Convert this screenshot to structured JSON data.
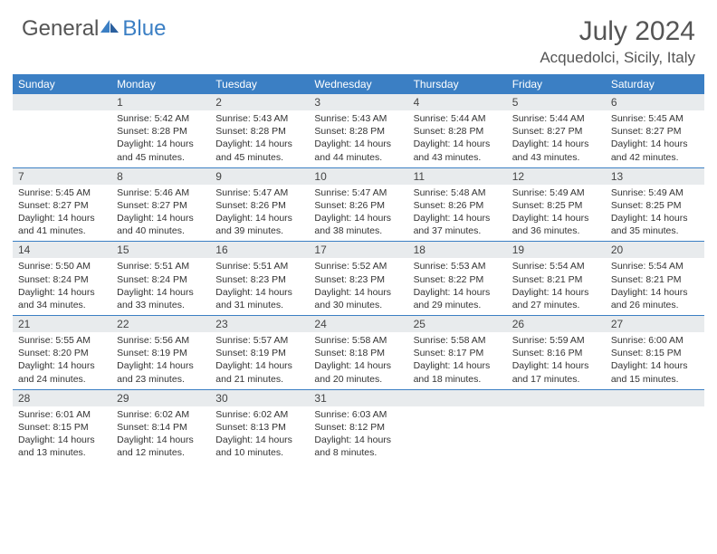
{
  "logo": {
    "general": "General",
    "blue": "Blue"
  },
  "title": "July 2024",
  "location": "Acquedolci, Sicily, Italy",
  "colors": {
    "header_bg": "#3b7fc4",
    "daynum_bg": "#e8ebed",
    "text": "#333333",
    "title_text": "#555555"
  },
  "dayNames": [
    "Sunday",
    "Monday",
    "Tuesday",
    "Wednesday",
    "Thursday",
    "Friday",
    "Saturday"
  ],
  "weeks": [
    [
      null,
      {
        "n": "1",
        "sr": "Sunrise: 5:42 AM",
        "ss": "Sunset: 8:28 PM",
        "d1": "Daylight: 14 hours",
        "d2": "and 45 minutes."
      },
      {
        "n": "2",
        "sr": "Sunrise: 5:43 AM",
        "ss": "Sunset: 8:28 PM",
        "d1": "Daylight: 14 hours",
        "d2": "and 45 minutes."
      },
      {
        "n": "3",
        "sr": "Sunrise: 5:43 AM",
        "ss": "Sunset: 8:28 PM",
        "d1": "Daylight: 14 hours",
        "d2": "and 44 minutes."
      },
      {
        "n": "4",
        "sr": "Sunrise: 5:44 AM",
        "ss": "Sunset: 8:28 PM",
        "d1": "Daylight: 14 hours",
        "d2": "and 43 minutes."
      },
      {
        "n": "5",
        "sr": "Sunrise: 5:44 AM",
        "ss": "Sunset: 8:27 PM",
        "d1": "Daylight: 14 hours",
        "d2": "and 43 minutes."
      },
      {
        "n": "6",
        "sr": "Sunrise: 5:45 AM",
        "ss": "Sunset: 8:27 PM",
        "d1": "Daylight: 14 hours",
        "d2": "and 42 minutes."
      }
    ],
    [
      {
        "n": "7",
        "sr": "Sunrise: 5:45 AM",
        "ss": "Sunset: 8:27 PM",
        "d1": "Daylight: 14 hours",
        "d2": "and 41 minutes."
      },
      {
        "n": "8",
        "sr": "Sunrise: 5:46 AM",
        "ss": "Sunset: 8:27 PM",
        "d1": "Daylight: 14 hours",
        "d2": "and 40 minutes."
      },
      {
        "n": "9",
        "sr": "Sunrise: 5:47 AM",
        "ss": "Sunset: 8:26 PM",
        "d1": "Daylight: 14 hours",
        "d2": "and 39 minutes."
      },
      {
        "n": "10",
        "sr": "Sunrise: 5:47 AM",
        "ss": "Sunset: 8:26 PM",
        "d1": "Daylight: 14 hours",
        "d2": "and 38 minutes."
      },
      {
        "n": "11",
        "sr": "Sunrise: 5:48 AM",
        "ss": "Sunset: 8:26 PM",
        "d1": "Daylight: 14 hours",
        "d2": "and 37 minutes."
      },
      {
        "n": "12",
        "sr": "Sunrise: 5:49 AM",
        "ss": "Sunset: 8:25 PM",
        "d1": "Daylight: 14 hours",
        "d2": "and 36 minutes."
      },
      {
        "n": "13",
        "sr": "Sunrise: 5:49 AM",
        "ss": "Sunset: 8:25 PM",
        "d1": "Daylight: 14 hours",
        "d2": "and 35 minutes."
      }
    ],
    [
      {
        "n": "14",
        "sr": "Sunrise: 5:50 AM",
        "ss": "Sunset: 8:24 PM",
        "d1": "Daylight: 14 hours",
        "d2": "and 34 minutes."
      },
      {
        "n": "15",
        "sr": "Sunrise: 5:51 AM",
        "ss": "Sunset: 8:24 PM",
        "d1": "Daylight: 14 hours",
        "d2": "and 33 minutes."
      },
      {
        "n": "16",
        "sr": "Sunrise: 5:51 AM",
        "ss": "Sunset: 8:23 PM",
        "d1": "Daylight: 14 hours",
        "d2": "and 31 minutes."
      },
      {
        "n": "17",
        "sr": "Sunrise: 5:52 AM",
        "ss": "Sunset: 8:23 PM",
        "d1": "Daylight: 14 hours",
        "d2": "and 30 minutes."
      },
      {
        "n": "18",
        "sr": "Sunrise: 5:53 AM",
        "ss": "Sunset: 8:22 PM",
        "d1": "Daylight: 14 hours",
        "d2": "and 29 minutes."
      },
      {
        "n": "19",
        "sr": "Sunrise: 5:54 AM",
        "ss": "Sunset: 8:21 PM",
        "d1": "Daylight: 14 hours",
        "d2": "and 27 minutes."
      },
      {
        "n": "20",
        "sr": "Sunrise: 5:54 AM",
        "ss": "Sunset: 8:21 PM",
        "d1": "Daylight: 14 hours",
        "d2": "and 26 minutes."
      }
    ],
    [
      {
        "n": "21",
        "sr": "Sunrise: 5:55 AM",
        "ss": "Sunset: 8:20 PM",
        "d1": "Daylight: 14 hours",
        "d2": "and 24 minutes."
      },
      {
        "n": "22",
        "sr": "Sunrise: 5:56 AM",
        "ss": "Sunset: 8:19 PM",
        "d1": "Daylight: 14 hours",
        "d2": "and 23 minutes."
      },
      {
        "n": "23",
        "sr": "Sunrise: 5:57 AM",
        "ss": "Sunset: 8:19 PM",
        "d1": "Daylight: 14 hours",
        "d2": "and 21 minutes."
      },
      {
        "n": "24",
        "sr": "Sunrise: 5:58 AM",
        "ss": "Sunset: 8:18 PM",
        "d1": "Daylight: 14 hours",
        "d2": "and 20 minutes."
      },
      {
        "n": "25",
        "sr": "Sunrise: 5:58 AM",
        "ss": "Sunset: 8:17 PM",
        "d1": "Daylight: 14 hours",
        "d2": "and 18 minutes."
      },
      {
        "n": "26",
        "sr": "Sunrise: 5:59 AM",
        "ss": "Sunset: 8:16 PM",
        "d1": "Daylight: 14 hours",
        "d2": "and 17 minutes."
      },
      {
        "n": "27",
        "sr": "Sunrise: 6:00 AM",
        "ss": "Sunset: 8:15 PM",
        "d1": "Daylight: 14 hours",
        "d2": "and 15 minutes."
      }
    ],
    [
      {
        "n": "28",
        "sr": "Sunrise: 6:01 AM",
        "ss": "Sunset: 8:15 PM",
        "d1": "Daylight: 14 hours",
        "d2": "and 13 minutes."
      },
      {
        "n": "29",
        "sr": "Sunrise: 6:02 AM",
        "ss": "Sunset: 8:14 PM",
        "d1": "Daylight: 14 hours",
        "d2": "and 12 minutes."
      },
      {
        "n": "30",
        "sr": "Sunrise: 6:02 AM",
        "ss": "Sunset: 8:13 PM",
        "d1": "Daylight: 14 hours",
        "d2": "and 10 minutes."
      },
      {
        "n": "31",
        "sr": "Sunrise: 6:03 AM",
        "ss": "Sunset: 8:12 PM",
        "d1": "Daylight: 14 hours",
        "d2": "and 8 minutes."
      },
      null,
      null,
      null
    ]
  ]
}
